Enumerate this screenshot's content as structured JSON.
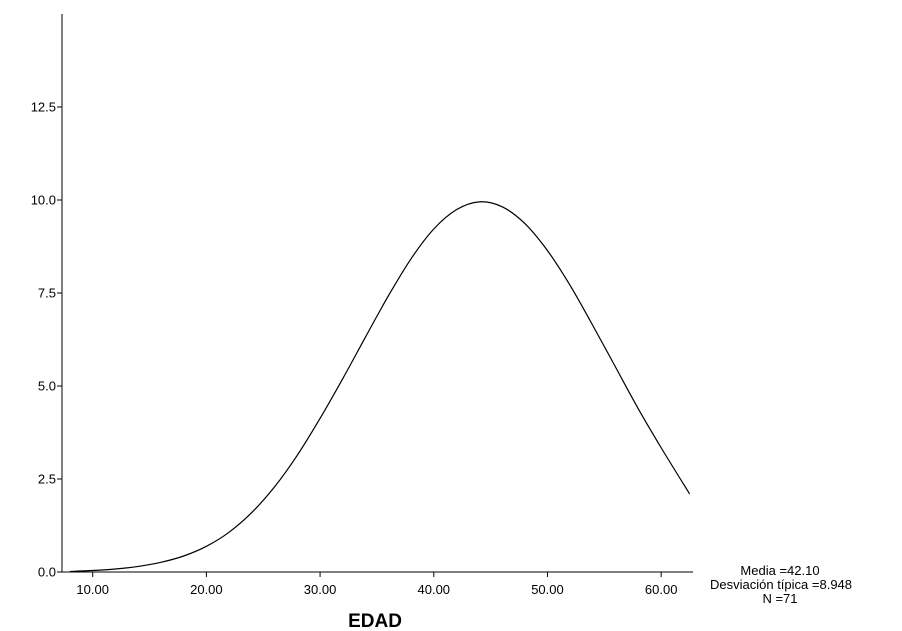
{
  "chart_data": {
    "type": "line",
    "title": "",
    "xlabel": "EDAD",
    "ylabel": "",
    "xlim": [
      7.3,
      62.8
    ],
    "ylim": [
      0,
      15
    ],
    "x_ticks": [
      "10.00",
      "20.00",
      "30.00",
      "40.00",
      "50.00",
      "60.00"
    ],
    "y_ticks": [
      "0.0",
      "2.5",
      "5.0",
      "7.5",
      "10.0",
      "12.5"
    ],
    "series": [
      {
        "name": "",
        "x": [
          8,
          10,
          12,
          14,
          16,
          18,
          20,
          22,
          24,
          26,
          28,
          30,
          32,
          34,
          36,
          38,
          40,
          42,
          44,
          46,
          48,
          50,
          52,
          54,
          56,
          58,
          60,
          62.5
        ],
        "y": [
          0.015,
          0.04,
          0.08,
          0.15,
          0.26,
          0.43,
          0.69,
          1.07,
          1.6,
          2.29,
          3.14,
          4.13,
          5.2,
          6.32,
          7.42,
          8.42,
          9.22,
          9.74,
          9.95,
          9.82,
          9.37,
          8.64,
          7.7,
          6.62,
          5.5,
          4.38,
          3.34,
          2.1
        ]
      }
    ],
    "grid": false,
    "legend": "none",
    "annotations": {
      "media": "Media =42.10",
      "desviacion": "Desviación típica =8.948",
      "n": "N =71"
    }
  },
  "colors": {
    "line": "#000000",
    "axis": "#000000",
    "background": "#ffffff"
  }
}
